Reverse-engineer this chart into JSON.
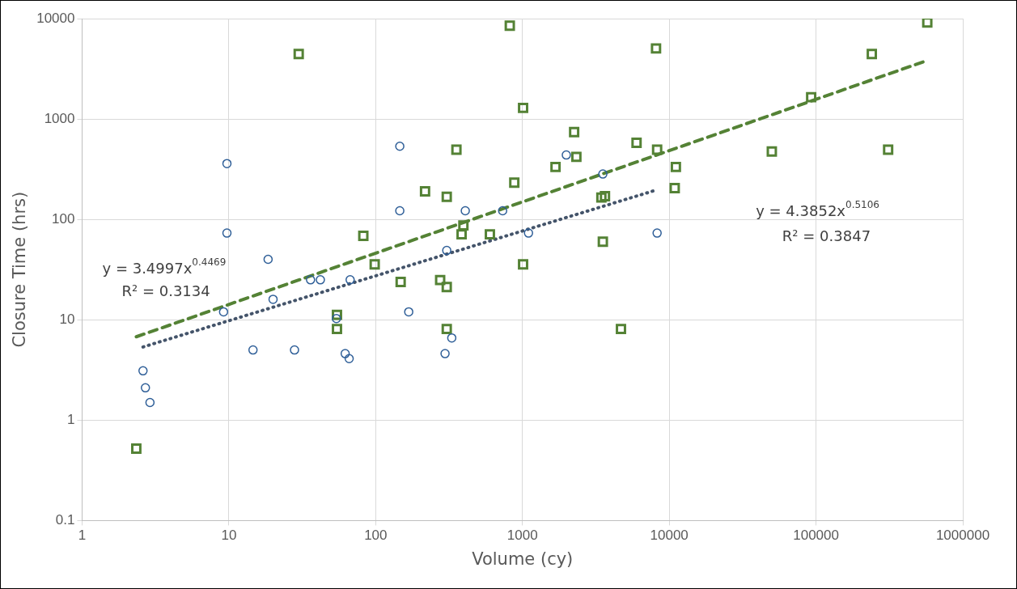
{
  "chart_data": {
    "type": "scatter",
    "xlabel": "Volume (cy)",
    "ylabel": "Closure Time (hrs)",
    "log": "xy",
    "grid": true,
    "xlim": [
      1,
      1000000
    ],
    "xticks": [
      1,
      10,
      100,
      1000,
      10000,
      100000,
      1000000
    ],
    "ylim": [
      0.1,
      10000
    ],
    "yticks": [
      0.1,
      1,
      10,
      100,
      1000,
      10000
    ],
    "series": [
      {
        "color": "#2f5f98",
        "marker": "circle",
        "x": [
          2.6,
          2.7,
          2.9,
          9.7,
          9.7,
          9.2,
          18.5,
          20,
          14.6,
          28,
          36,
          42,
          67,
          54,
          62,
          66,
          146,
          146,
          168,
          305,
          408,
          733,
          1100,
          297,
          330,
          1990,
          3530,
          8270
        ],
        "values": [
          3.1,
          2.1,
          1.5,
          360,
          73,
          12,
          40,
          16,
          5,
          5,
          25,
          25,
          25,
          10.3,
          4.6,
          4.1,
          535,
          122,
          12,
          49,
          122,
          122,
          73,
          4.6,
          6.6,
          438,
          283,
          73
        ]
      },
      {
        "color": "#548235",
        "marker": "square",
        "x": [
          2.34,
          29.9,
          54.5,
          54.5,
          82.4,
          820,
          8130,
          1010,
          2250,
          5990,
          8270,
          355,
          2330,
          11100,
          1680,
          880,
          217,
          305,
          3450,
          3650,
          10900,
          396,
          385,
          600,
          98.5,
          3530,
          1010,
          148,
          275,
          305,
          305,
          4690,
          573000,
          240000,
          92700,
          50000,
          310000
        ],
        "values": [
          0.52,
          4440,
          11.2,
          8.1,
          68.5,
          8500,
          5040,
          1290,
          740,
          580,
          495,
          495,
          420,
          333,
          333,
          232,
          190,
          168,
          165,
          170,
          205,
          87,
          71,
          71,
          35.6,
          60,
          35.6,
          23.8,
          24.9,
          21.2,
          8.1,
          8.1,
          9150,
          4440,
          1650,
          475,
          495
        ]
      },
      {
        "type": "line",
        "color": "#44546a",
        "marker": "none",
        "line_style": "dotted",
        "x": [
          2.6,
          8270
        ],
        "values": [
          5.36,
          197.2
        ]
      },
      {
        "type": "line",
        "color": "#548235",
        "marker": "none",
        "line_style": "dashed",
        "x": [
          2.34,
          573000
        ],
        "values": [
          6.77,
          3829
        ]
      }
    ],
    "annotations": [
      "y = 3.4997x$^{0.4469}$",
      "R² = 0.3134",
      "y = 4.3852x$^{0.5106}$",
      "R² = 0.3847"
    ]
  }
}
